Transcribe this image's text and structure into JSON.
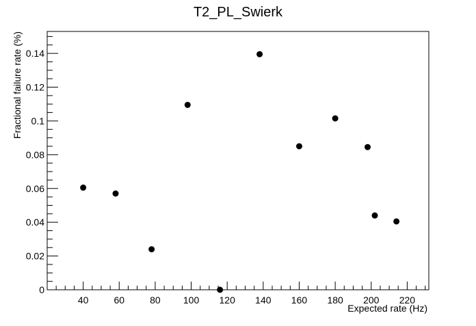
{
  "chart_data": {
    "type": "scatter",
    "title": "T2_PL_Swierk",
    "xlabel": "Expected rate (Hz)",
    "ylabel": "Fractional failure rate (%)",
    "xlim": [
      20,
      232
    ],
    "ylim": [
      0,
      0.153
    ],
    "x_ticks": [
      40,
      60,
      80,
      100,
      120,
      140,
      160,
      180,
      200,
      220
    ],
    "x_tick_labels": [
      "40",
      "60",
      "80",
      "100",
      "120",
      "140",
      "160",
      "180",
      "200",
      "220"
    ],
    "y_ticks": [
      0,
      0.02,
      0.04,
      0.06,
      0.08,
      0.1,
      0.12,
      0.14
    ],
    "y_tick_labels": [
      "0",
      "0.02",
      "0.04",
      "0.06",
      "0.08",
      "0.1",
      "0.12",
      "0.14"
    ],
    "grid": false,
    "legend": "none",
    "marker_color": "#000000",
    "series": [
      {
        "points": [
          {
            "x": 40,
            "y": 0.0605
          },
          {
            "x": 58,
            "y": 0.057
          },
          {
            "x": 78,
            "y": 0.024
          },
          {
            "x": 98,
            "y": 0.1095
          },
          {
            "x": 116,
            "y": 0.0
          },
          {
            "x": 138,
            "y": 0.1395
          },
          {
            "x": 160,
            "y": 0.085
          },
          {
            "x": 180,
            "y": 0.1015
          },
          {
            "x": 198,
            "y": 0.0845
          },
          {
            "x": 202,
            "y": 0.044
          },
          {
            "x": 214,
            "y": 0.0405
          }
        ]
      }
    ]
  }
}
